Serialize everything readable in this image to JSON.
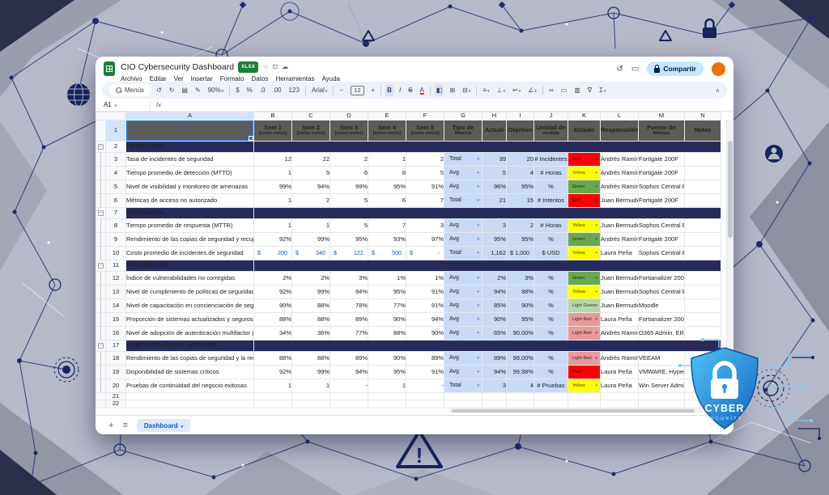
{
  "titlebar": {
    "title": "CIO Cybersecurity Dashboard",
    "file_badge": "XLSX",
    "menus": [
      "Archivo",
      "Editar",
      "Ver",
      "Insertar",
      "Formato",
      "Datos",
      "Herramientas",
      "Ayuda"
    ],
    "share_label": "Compartir",
    "icons": {
      "star": "☆",
      "folder": "⊡",
      "cloud": "☁",
      "history": "↺",
      "comments": "▭"
    }
  },
  "toolbar": {
    "menus_label": "Menús",
    "collapse_glyph": "∧",
    "items": [
      {
        "n": "undo-icon",
        "g": "↺"
      },
      {
        "n": "redo-icon",
        "g": "↻"
      },
      {
        "n": "print-icon",
        "g": "▤"
      },
      {
        "n": "paint-format-icon",
        "g": "✎"
      },
      {
        "n": "zoom-select",
        "g": "90%",
        "caret": true,
        "lbl": true
      },
      {
        "sep": true
      },
      {
        "n": "currency-format-icon",
        "g": "$"
      },
      {
        "n": "percent-format-icon",
        "g": "%"
      },
      {
        "n": "decrease-decimals-icon",
        "g": ".0"
      },
      {
        "n": "increase-decimals-icon",
        "g": ".00"
      },
      {
        "n": "more-formats-icon",
        "g": "123"
      },
      {
        "sep": true
      },
      {
        "n": "font-select",
        "g": "Arial",
        "caret": true,
        "lbl": true
      },
      {
        "sep": true
      },
      {
        "n": "decrease-font-size-icon",
        "g": "−"
      },
      {
        "n": "font-size-input",
        "g": "12",
        "box": true
      },
      {
        "n": "increase-font-size-icon",
        "g": "+"
      },
      {
        "sep": true
      },
      {
        "n": "bold-icon",
        "g": "B",
        "hl": true,
        "bold": true
      },
      {
        "n": "italic-icon",
        "g": "I",
        "italic": true
      },
      {
        "n": "strikethrough-icon",
        "g": "S",
        "strike": true
      },
      {
        "n": "text-color-icon",
        "g": "A",
        "colorbar": true
      },
      {
        "sep": true
      },
      {
        "n": "fill-color-icon",
        "g": "◧",
        "hl": true
      },
      {
        "n": "borders-icon",
        "g": "⊞"
      },
      {
        "n": "merge-cells-icon",
        "g": "⊟",
        "caret": true
      },
      {
        "sep": true
      },
      {
        "n": "horizontal-align-icon",
        "g": "≡",
        "caret": true
      },
      {
        "n": "vertical-align-icon",
        "g": "⊥",
        "caret": true
      },
      {
        "n": "text-wrap-icon",
        "g": "↩",
        "caret": true
      },
      {
        "n": "text-rotation-icon",
        "g": "∠",
        "caret": true
      },
      {
        "sep": true
      },
      {
        "n": "insert-link-icon",
        "g": "∞"
      },
      {
        "n": "insert-comment-icon",
        "g": "▭"
      },
      {
        "n": "insert-chart-icon",
        "g": "▥"
      },
      {
        "n": "create-filter-icon",
        "g": "∇"
      },
      {
        "n": "functions-icon",
        "g": "Σ",
        "caret": true
      }
    ]
  },
  "formula_bar": {
    "name_box": "A1",
    "fx_label": "fx"
  },
  "sheet": {
    "col_letters": [
      "A",
      "B",
      "C",
      "D",
      "E",
      "F",
      "G",
      "H",
      "I",
      "J",
      "K",
      "L",
      "M",
      "N"
    ],
    "first_row_num": "1",
    "header_cells": [
      {
        "l1": "Sem 1",
        "l2": "[xx/xx-xx/xx]"
      },
      {
        "l1": "Sem 2",
        "l2": "[xx/xx-xx/xx]"
      },
      {
        "l1": "Sem 3",
        "l2": "[xx/xx-xx/xx]"
      },
      {
        "l1": "Sem 4",
        "l2": "[xx/xx-xx/xx]"
      },
      {
        "l1": "Sem 5",
        "l2": "[xx/xx-xx/xx]"
      },
      {
        "l1": "Tipo de",
        "l2": "Metrica"
      },
      {
        "l1": "Actual",
        "l2": ""
      },
      {
        "l1": "Objetivo",
        "l2": ""
      },
      {
        "l1": "Unidad de",
        "l2": "medida"
      },
      {
        "l1": "Estado",
        "l2": ""
      },
      {
        "l1": "Responsable",
        "l2": ""
      },
      {
        "l1": "Fuente de",
        "l2": "Metrica"
      },
      {
        "l1": "Notas",
        "l2": ""
      }
    ],
    "sections": [
      {
        "num": "2",
        "title": "DETECCIÓN",
        "rows": [
          {
            "num": "3",
            "name": "Tasa de incidentes de seguridad",
            "weeks": [
              "12",
              "22",
              "2",
              "1",
              "2"
            ],
            "tipo": "Total",
            "actual": "39",
            "objetivo": "20",
            "unidad": "# Incidentes",
            "estado": {
              "label": "Red",
              "color": "#ff0000"
            },
            "responsable": "Andrés Ramírez",
            "fuente": "Fortigate 200F",
            "notas": ""
          },
          {
            "num": "4",
            "name": "Tiempo promedio de detección (MTTD)",
            "weeks": [
              "1",
              "5",
              "6",
              "8",
              "5"
            ],
            "tipo": "Avg",
            "actual": "5",
            "objetivo": "4",
            "unidad": "# Horas",
            "estado": {
              "label": "Yellow",
              "color": "#ffff00"
            },
            "responsable": "Andrés Ramírez",
            "fuente": "Fortigate 200F",
            "notas": ""
          },
          {
            "num": "5",
            "name": "Nivel de visibilidad y monitoreo de amenazas",
            "weeks": [
              "99%",
              "94%",
              "99%",
              "95%",
              "91%"
            ],
            "tipo": "Avg",
            "actual": "96%",
            "objetivo": "95%",
            "unidad": "%",
            "estado": {
              "label": "Green",
              "color": "#6aa84f"
            },
            "responsable": "Andrés Ramírez",
            "fuente": "Sophos Central Endpoint",
            "notas": ""
          },
          {
            "num": "6",
            "name": "Métricas de acceso no autorizado",
            "weeks": [
              "1",
              "2",
              "5",
              "6",
              "7"
            ],
            "tipo": "Total",
            "actual": "21",
            "objetivo": "15",
            "unidad": "# Intentos",
            "estado": {
              "label": "Red",
              "color": "#ff0000"
            },
            "responsable": "Juan Bermudez",
            "fuente": "Fortigate 200F",
            "notas": ""
          }
        ]
      },
      {
        "num": "7",
        "title": "RESPUESTA",
        "rows": [
          {
            "num": "8",
            "name": "Tiempo promedio de respuesta (MTTR)",
            "weeks": [
              "1",
              "1",
              "5",
              "7",
              "3"
            ],
            "tipo": "Avg",
            "actual": "3",
            "objetivo": "2",
            "unidad": "# Horas",
            "estado": {
              "label": "Yellow",
              "color": "#ffff00"
            },
            "responsable": "Juan Bermudez",
            "fuente": "Sophos Central Endpoint",
            "notas": ""
          },
          {
            "num": "9",
            "name": "Rendimiento de las copias de seguridad y recuperación",
            "weeks": [
              "92%",
              "99%",
              "95%",
              "93%",
              "97%"
            ],
            "tipo": "Avg",
            "actual": "95%",
            "objetivo": "95%",
            "unidad": "%",
            "estado": {
              "label": "Green",
              "color": "#6aa84f"
            },
            "responsable": "Andrés Ramírez",
            "fuente": "Fortigate 200F",
            "notas": ""
          },
          {
            "num": "10",
            "name": "Costo promedio de incidentes de seguridad",
            "weeks": [
              {
                "s": "$",
                "v": "200"
              },
              {
                "s": "$",
                "v": "340"
              },
              {
                "s": "$",
                "v": "122"
              },
              {
                "s": "$",
                "v": "500"
              },
              {
                "s": "$",
                "v": "-"
              }
            ],
            "tipo": "Total",
            "actual": "1,162",
            "objetivo": {
              "s": "$",
              "v": "1,000"
            },
            "unidad": "$ USD",
            "estado": {
              "label": "Yellow",
              "color": "#ffff00"
            },
            "responsable": "Laura Peña",
            "fuente": "Sophos Central Endpoint",
            "notas": ""
          }
        ]
      },
      {
        "num": "11",
        "title": "PREVENCIÓN",
        "rows": [
          {
            "num": "12",
            "name": "Índice de vulnerabilidades no corregidas",
            "weeks": [
              "2%",
              "2%",
              "3%",
              "1%",
              "1%"
            ],
            "tipo": "Avg",
            "actual": "2%",
            "objetivo": "3%",
            "unidad": "%",
            "estado": {
              "label": "Green",
              "color": "#6aa84f"
            },
            "responsable": "Juan Bermudez",
            "fuente": "Fortianalizer 200F",
            "notas": ""
          },
          {
            "num": "13",
            "name": "Nivel de cumplimiento de políticas de seguridad",
            "weeks": [
              "92%",
              "99%",
              "94%",
              "95%",
              "91%"
            ],
            "tipo": "Avg",
            "actual": "94%",
            "objetivo": "98%",
            "unidad": "%",
            "estado": {
              "label": "Yellow",
              "color": "#ffff00"
            },
            "responsable": "Juan Bermudez",
            "fuente": "Sophos Central Endpoint",
            "notas": ""
          },
          {
            "num": "14",
            "name": "Nivel de capacitación en concienciación de seguridad",
            "weeks": [
              "90%",
              "88%",
              "78%",
              "77%",
              "91%"
            ],
            "tipo": "Avg",
            "actual": "85%",
            "objetivo": "90%",
            "unidad": "%",
            "estado": {
              "label": "Light Green",
              "color": "#b6d7a8"
            },
            "responsable": "Juan Bermudez",
            "fuente": "Moodle",
            "notas": ""
          },
          {
            "num": "15",
            "name": "Proporción de sistemas actualizados y seguros",
            "weeks": [
              "88%",
              "88%",
              "89%",
              "90%",
              "94%"
            ],
            "tipo": "Avg",
            "actual": "90%",
            "objetivo": "95%",
            "unidad": "%",
            "estado": {
              "label": "Light Red",
              "color": "#ea9999"
            },
            "responsable": "Laura Peña",
            "fuente": "Fortianalizer 200F",
            "notas": ""
          },
          {
            "num": "16",
            "name": "Nivel de adopción de autenticación multifactor (MFA)",
            "weeks": [
              "34%",
              "36%",
              "77%",
              "88%",
              "90%"
            ],
            "tipo": "Avg",
            "actual": "65%",
            "objetivo": "90.00%",
            "unidad": "%",
            "estado": {
              "label": "Light Red",
              "color": "#ea9999"
            },
            "responsable": "Andrés Ramírez",
            "fuente": "O365 Admin, ERP Admin,",
            "notas": ""
          }
        ]
      },
      {
        "num": "17",
        "title": "CONTINUIDAD DEL NEGOCIO",
        "rows": [
          {
            "num": "18",
            "name": "Rendimiento de las copias de seguridad y la recuperación",
            "weeks": [
              "88%",
              "88%",
              "89%",
              "90%",
              "89%"
            ],
            "tipo": "Avg",
            "actual": "89%",
            "objetivo": "99.00%",
            "unidad": "%",
            "estado": {
              "label": "Light Red",
              "color": "#ea9999"
            },
            "responsable": "Andrés Ramírez",
            "fuente": "VEEAM",
            "notas": ""
          },
          {
            "num": "19",
            "name": "Disponibilidad de sistemas críticos",
            "weeks": [
              "92%",
              "99%",
              "94%",
              "95%",
              "91%"
            ],
            "tipo": "Avg",
            "actual": "94%",
            "objetivo": "99.98%",
            "unidad": "%",
            "estado": {
              "label": "Red",
              "color": "#ff0000"
            },
            "responsable": "Laura Peña",
            "fuente": "VMWARE, HyperV",
            "notas": ""
          },
          {
            "num": "20",
            "name": "Pruebas de continuidad del negocio exitosas",
            "weeks": [
              "1",
              "1",
              "-",
              "1",
              "-"
            ],
            "tipo": "Total",
            "actual": "3",
            "objetivo": "4",
            "unidad": "# Pruebas",
            "estado": {
              "label": "Yellow",
              "color": "#ffff00"
            },
            "responsable": "Laura Peña",
            "fuente": "Win Server Admin",
            "notas": ""
          }
        ]
      }
    ],
    "trailing_rows": [
      "21",
      "22"
    ]
  },
  "bottombar": {
    "tab_label": "Dashboard",
    "icons": {
      "add": "+",
      "all_sheets": "≡"
    }
  },
  "scene": {
    "shield": {
      "line1": "CYBER",
      "line2": "SECURITY"
    }
  }
}
